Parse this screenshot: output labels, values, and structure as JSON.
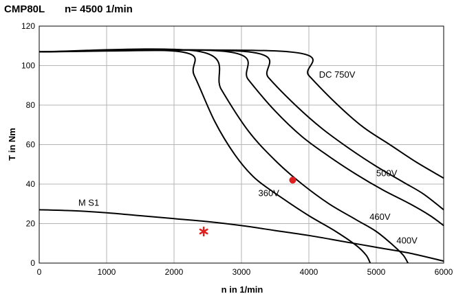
{
  "header": {
    "model": "CMP80L",
    "speed": "n= 4500 1/min"
  },
  "chart_data": {
    "type": "line",
    "xlabel": "n in 1/min",
    "ylabel": "T  in Nm",
    "xlim": [
      0,
      6000
    ],
    "ylim": [
      0,
      120
    ],
    "xticks": [
      0,
      1000,
      2000,
      3000,
      4000,
      5000,
      6000
    ],
    "yticks": [
      0,
      20,
      40,
      60,
      80,
      100,
      120
    ],
    "grid": true,
    "series": [
      {
        "name": "360V",
        "color": "#000000",
        "points": [
          [
            0,
            107
          ],
          [
            2100,
            107
          ],
          [
            2300,
            95
          ],
          [
            2600,
            72
          ],
          [
            2900,
            55
          ],
          [
            3200,
            43
          ],
          [
            3600,
            33
          ],
          [
            4000,
            24
          ],
          [
            4400,
            16
          ],
          [
            4700,
            9
          ],
          [
            4850,
            4
          ],
          [
            4910,
            0
          ]
        ]
      },
      {
        "name": "400V",
        "color": "#000000",
        "points": [
          [
            0,
            107
          ],
          [
            2400,
            107
          ],
          [
            2700,
            88
          ],
          [
            3100,
            67
          ],
          [
            3500,
            52
          ],
          [
            3900,
            40
          ],
          [
            4300,
            30
          ],
          [
            4700,
            22
          ],
          [
            5000,
            16
          ],
          [
            5250,
            9
          ],
          [
            5400,
            4
          ],
          [
            5470,
            0
          ]
        ]
      },
      {
        "name": "460V",
        "color": "#000000",
        "points": [
          [
            0,
            107
          ],
          [
            2800,
            107
          ],
          [
            3100,
            93
          ],
          [
            3500,
            77
          ],
          [
            3900,
            64
          ],
          [
            4300,
            54
          ],
          [
            4700,
            45
          ],
          [
            5100,
            37
          ],
          [
            5500,
            30
          ],
          [
            5800,
            24
          ],
          [
            6000,
            19
          ]
        ]
      },
      {
        "name": "500V",
        "color": "#000000",
        "points": [
          [
            0,
            107
          ],
          [
            3100,
            107
          ],
          [
            3400,
            94
          ],
          [
            3800,
            80
          ],
          [
            4200,
            68
          ],
          [
            4600,
            58
          ],
          [
            5000,
            49
          ],
          [
            5400,
            41
          ],
          [
            5700,
            35
          ],
          [
            6000,
            27
          ]
        ]
      },
      {
        "name": "DC 750V",
        "color": "#000000",
        "points": [
          [
            0,
            107
          ],
          [
            3700,
            107
          ],
          [
            4000,
            95
          ],
          [
            4400,
            81
          ],
          [
            4800,
            69
          ],
          [
            5200,
            60
          ],
          [
            5600,
            51
          ],
          [
            6000,
            43
          ]
        ]
      },
      {
        "name": "M S1",
        "color": "#000000",
        "points": [
          [
            0,
            27
          ],
          [
            500,
            26.5
          ],
          [
            1000,
            25.5
          ],
          [
            1500,
            24
          ],
          [
            2000,
            22.5
          ],
          [
            2500,
            21
          ],
          [
            3000,
            19
          ],
          [
            3500,
            16.5
          ],
          [
            4000,
            14
          ],
          [
            4500,
            11
          ],
          [
            5000,
            8
          ],
          [
            5500,
            5
          ],
          [
            6000,
            1
          ]
        ]
      }
    ],
    "annotations": [
      {
        "text": "DC 750V",
        "x": 4150,
        "y": 94
      },
      {
        "text": "500V",
        "x": 5000,
        "y": 44
      },
      {
        "text": "460V",
        "x": 4900,
        "y": 22
      },
      {
        "text": "400V",
        "x": 5300,
        "y": 10
      },
      {
        "text": "360V",
        "x": 3250,
        "y": 34
      },
      {
        "text": "M S1",
        "x": 580,
        "y": 29
      }
    ],
    "markers": [
      {
        "shape": "dot",
        "color": "#e02020",
        "x": 3760,
        "y": 42
      },
      {
        "shape": "star",
        "color": "#e02020",
        "x": 2440,
        "y": 16
      }
    ]
  }
}
